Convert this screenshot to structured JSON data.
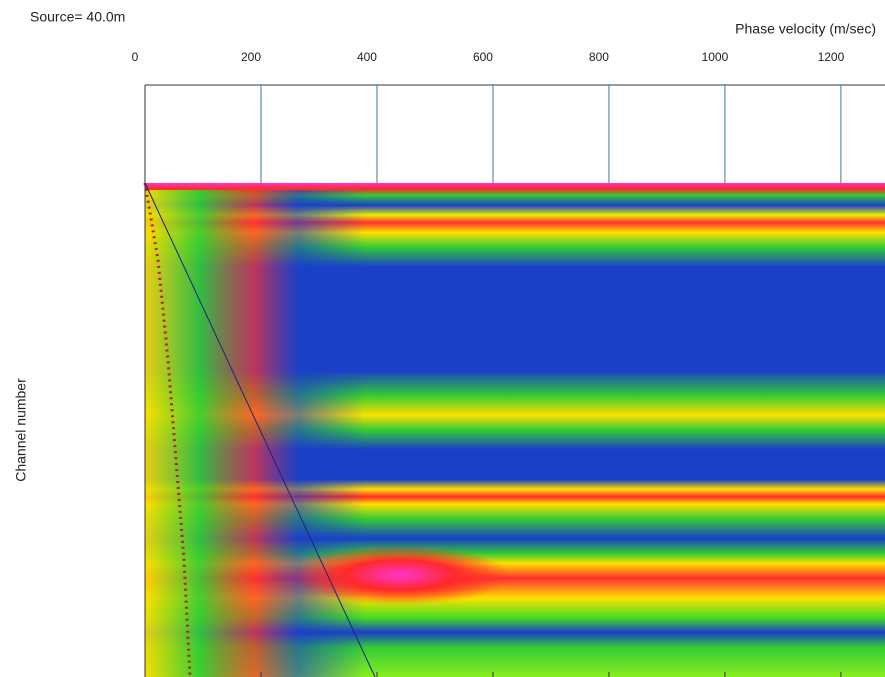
{
  "chart_data": {
    "type": "heatmap",
    "annotation": "Source= 40.0m",
    "x_label": "Phase velocity (m/sec)",
    "y_label": "Channel number",
    "xlim": [
      0,
      1276
    ],
    "xticks": [
      0,
      200,
      400,
      600,
      800,
      1000,
      1200
    ],
    "grid": true,
    "grid_color": "#3a78a8"
  }
}
